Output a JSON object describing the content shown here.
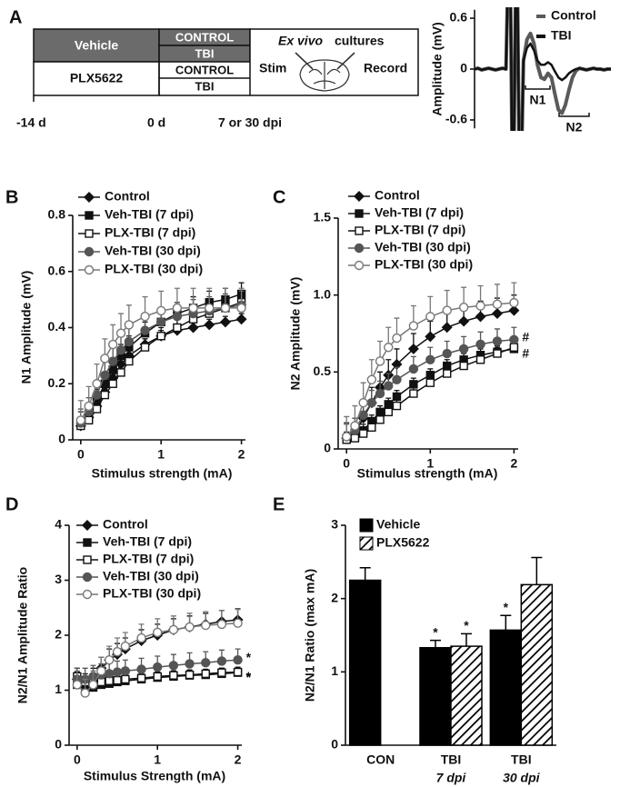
{
  "panel_labels": [
    "A",
    "B",
    "C",
    "D",
    "E"
  ],
  "panel_a": {
    "groups": [
      {
        "label": "Vehicle",
        "conditions": [
          "CONTROL",
          "TBI"
        ]
      },
      {
        "label": "PLX5622",
        "conditions": [
          "CONTROL",
          "TBI"
        ]
      }
    ],
    "culture_italic": "Ex vivo",
    "culture": "cultures",
    "stim": "Stim",
    "record": "Record",
    "timeline": [
      "-14 d",
      "0 d",
      "7 or 30 dpi"
    ]
  },
  "chart_data": [
    {
      "type": "line",
      "ylabel": "Amplitude (mV)",
      "ylim": [
        -0.7,
        0.7
      ],
      "yticks": [
        -0.6,
        0,
        0.6
      ],
      "categories": [
        null,
        null,
        null,
        null,
        null,
        null,
        null,
        null,
        null,
        null,
        null,
        null,
        null,
        null,
        null,
        null,
        null,
        null,
        null,
        null,
        null,
        null,
        null,
        null,
        null,
        null,
        null,
        null,
        null,
        null,
        null,
        null,
        null,
        null,
        null,
        null,
        null,
        null,
        null,
        null
      ],
      "series": [
        {
          "name": "Control",
          "color": "#5a5a5a",
          "width": 4,
          "values": [
            0,
            0.01,
            -0.01,
            0,
            0.01,
            0,
            -0.01,
            0,
            0.01,
            0,
            2,
            -2,
            2,
            -2,
            0.1,
            0.35,
            0.42,
            0.3,
            0.05,
            -0.1,
            -0.12,
            -0.05,
            -0.1,
            -0.3,
            -0.48,
            -0.52,
            -0.42,
            -0.25,
            -0.1,
            -0.02,
            0.01,
            0,
            -0.01,
            0,
            0.01,
            0,
            0,
            -0.01,
            0,
            0
          ]
        },
        {
          "name": "TBI",
          "color": "#111111",
          "width": 2.5,
          "values": [
            0,
            0.01,
            -0.01,
            0,
            0.01,
            0,
            -0.01,
            0,
            0.01,
            0,
            2,
            -2,
            2,
            -2,
            0.1,
            0.25,
            0.3,
            0.22,
            0.1,
            0.05,
            0.05,
            0.08,
            0.05,
            -0.03,
            -0.1,
            -0.13,
            -0.1,
            -0.05,
            -0.02,
            0,
            0.01,
            0,
            -0.01,
            0,
            0.01,
            0,
            0,
            -0.01,
            0,
            0
          ]
        }
      ],
      "annotations": [
        "N1",
        "N2"
      ]
    },
    {
      "type": "line",
      "ylabel": "N1 Amplitude (mV)",
      "xlabel": "Stimulus strength (mA)",
      "xlim": [
        -0.1,
        2.05
      ],
      "xticks": [
        0,
        1,
        2
      ],
      "ylim": [
        0,
        0.8
      ],
      "yticks": [
        0,
        0.2,
        0.4,
        0.6,
        0.8
      ],
      "x": [
        0,
        0.1,
        0.2,
        0.3,
        0.4,
        0.5,
        0.6,
        0.8,
        1.0,
        1.2,
        1.4,
        1.6,
        1.8,
        2.0
      ],
      "series": [
        {
          "name": "Control",
          "color": "#111111",
          "marker": "diamond",
          "filled": true,
          "values": [
            0.05,
            0.08,
            0.12,
            0.17,
            0.22,
            0.27,
            0.3,
            0.34,
            0.37,
            0.39,
            0.4,
            0.41,
            0.42,
            0.43
          ],
          "errors": [
            0.02,
            0.02,
            0.02,
            0.02,
            0.02,
            0.02,
            0.02,
            0.02,
            0.02,
            0.02,
            0.02,
            0.02,
            0.02,
            0.02
          ]
        },
        {
          "name": "Veh-TBI (7 dpi)",
          "color": "#111111",
          "marker": "square",
          "filled": true,
          "values": [
            0.06,
            0.08,
            0.14,
            0.2,
            0.25,
            0.3,
            0.33,
            0.38,
            0.42,
            0.45,
            0.47,
            0.49,
            0.5,
            0.52
          ],
          "errors": [
            0.04,
            0.04,
            0.04,
            0.04,
            0.04,
            0.04,
            0.04,
            0.04,
            0.04,
            0.04,
            0.04,
            0.04,
            0.04,
            0.04
          ]
        },
        {
          "name": "PLX-TBI (7 dpi)",
          "color": "#111111",
          "marker": "square",
          "filled": false,
          "values": [
            0.05,
            0.07,
            0.11,
            0.16,
            0.2,
            0.24,
            0.28,
            0.33,
            0.37,
            0.4,
            0.43,
            0.45,
            0.47,
            0.49
          ],
          "errors": [
            0.03,
            0.03,
            0.03,
            0.03,
            0.03,
            0.03,
            0.03,
            0.03,
            0.03,
            0.03,
            0.03,
            0.03,
            0.03,
            0.03
          ]
        },
        {
          "name": "Veh-TBI (30 dpi)",
          "color": "#555555",
          "marker": "circle",
          "filled": true,
          "values": [
            0.06,
            0.1,
            0.16,
            0.23,
            0.28,
            0.32,
            0.35,
            0.39,
            0.42,
            0.44,
            0.45,
            0.46,
            0.47,
            0.48
          ],
          "errors": [
            0.05,
            0.05,
            0.05,
            0.05,
            0.05,
            0.05,
            0.05,
            0.05,
            0.05,
            0.05,
            0.05,
            0.05,
            0.05,
            0.05
          ]
        },
        {
          "name": "PLX-TBI (30 dpi)",
          "color": "#777777",
          "marker": "circle",
          "filled": false,
          "values": [
            0.07,
            0.12,
            0.2,
            0.29,
            0.34,
            0.38,
            0.41,
            0.44,
            0.46,
            0.47,
            0.47,
            0.47,
            0.47,
            0.47
          ],
          "errors": [
            0.07,
            0.07,
            0.07,
            0.07,
            0.07,
            0.07,
            0.07,
            0.07,
            0.07,
            0.07,
            0.07,
            0.07,
            0.07,
            0.07
          ]
        }
      ]
    },
    {
      "type": "line",
      "ylabel": "N2 Amplitude (mV)",
      "xlabel": "Stimulus strength (mA)",
      "xlim": [
        -0.1,
        2.05
      ],
      "xticks": [
        0,
        1,
        2
      ],
      "ylim": [
        0,
        1.5
      ],
      "yticks": [
        0,
        0.5,
        {
          "value": 1,
          "label": "1.0"
        },
        1.5
      ],
      "x": [
        0,
        0.1,
        0.2,
        0.3,
        0.4,
        0.5,
        0.6,
        0.8,
        1.0,
        1.2,
        1.4,
        1.6,
        1.8,
        2.0
      ],
      "series": [
        {
          "name": "Control",
          "color": "#111111",
          "marker": "diamond",
          "filled": true,
          "values": [
            0.07,
            0.1,
            0.2,
            0.3,
            0.4,
            0.48,
            0.55,
            0.65,
            0.73,
            0.79,
            0.83,
            0.86,
            0.88,
            0.9
          ],
          "errors": [
            0.1,
            0.1,
            0.1,
            0.1,
            0.1,
            0.1,
            0.1,
            0.1,
            0.1,
            0.1,
            0.1,
            0.1,
            0.1,
            0.1
          ]
        },
        {
          "name": "Veh-TBI (7 dpi)",
          "color": "#111111",
          "marker": "square",
          "filled": true,
          "values": [
            0.07,
            0.08,
            0.12,
            0.18,
            0.24,
            0.29,
            0.34,
            0.42,
            0.48,
            0.54,
            0.58,
            0.61,
            0.63,
            0.65
          ],
          "errors": [
            0.04,
            0.04,
            0.04,
            0.04,
            0.04,
            0.04,
            0.04,
            0.04,
            0.04,
            0.04,
            0.04,
            0.04,
            0.04,
            0.04
          ]
        },
        {
          "name": "PLX-TBI (7 dpi)",
          "color": "#111111",
          "marker": "square",
          "filled": false,
          "values": [
            0.06,
            0.07,
            0.1,
            0.14,
            0.19,
            0.24,
            0.28,
            0.36,
            0.43,
            0.49,
            0.54,
            0.58,
            0.62,
            0.66
          ],
          "errors": [
            0.04,
            0.04,
            0.04,
            0.04,
            0.04,
            0.04,
            0.04,
            0.04,
            0.04,
            0.04,
            0.04,
            0.04,
            0.04,
            0.04
          ]
        },
        {
          "name": "Veh-TBI (30 dpi)",
          "color": "#555555",
          "marker": "circle",
          "filled": true,
          "values": [
            0.08,
            0.12,
            0.22,
            0.3,
            0.36,
            0.41,
            0.45,
            0.52,
            0.58,
            0.62,
            0.65,
            0.68,
            0.7,
            0.71
          ],
          "errors": [
            0.08,
            0.08,
            0.08,
            0.08,
            0.08,
            0.08,
            0.08,
            0.08,
            0.08,
            0.08,
            0.08,
            0.08,
            0.08,
            0.08
          ]
        },
        {
          "name": "PLX-TBI (30 dpi)",
          "color": "#777777",
          "marker": "circle",
          "filled": false,
          "values": [
            0.08,
            0.15,
            0.3,
            0.45,
            0.57,
            0.66,
            0.72,
            0.8,
            0.86,
            0.9,
            0.92,
            0.93,
            0.94,
            0.95
          ],
          "errors": [
            0.13,
            0.13,
            0.13,
            0.13,
            0.13,
            0.13,
            0.13,
            0.13,
            0.13,
            0.13,
            0.13,
            0.13,
            0.13,
            0.13
          ]
        }
      ],
      "annotations": [
        "#",
        "#"
      ]
    },
    {
      "type": "line",
      "ylabel": "N2/N1 Amplitude Ratio",
      "xlabel": "Stimulus Strength (mA)",
      "xlim": [
        -0.1,
        2.05
      ],
      "xticks": [
        0,
        1,
        2
      ],
      "ylim": [
        0,
        4
      ],
      "yticks": [
        0,
        1,
        2,
        3,
        4
      ],
      "x": [
        0,
        0.1,
        0.2,
        0.3,
        0.4,
        0.5,
        0.6,
        0.8,
        1.0,
        1.2,
        1.4,
        1.6,
        1.8,
        2.0
      ],
      "series": [
        {
          "name": "Control",
          "color": "#111111",
          "marker": "diamond",
          "filled": true,
          "values": [
            1.2,
            1.1,
            1.2,
            1.4,
            1.55,
            1.65,
            1.75,
            1.9,
            2.0,
            2.1,
            2.15,
            2.2,
            2.25,
            2.28
          ],
          "errors": [
            0.2,
            0.2,
            0.2,
            0.2,
            0.2,
            0.2,
            0.2,
            0.2,
            0.2,
            0.2,
            0.2,
            0.2,
            0.2,
            0.2
          ]
        },
        {
          "name": "Veh-TBI (7 dpi)",
          "color": "#111111",
          "marker": "square",
          "filled": true,
          "values": [
            1.1,
            1.05,
            1.05,
            1.1,
            1.12,
            1.15,
            1.17,
            1.2,
            1.23,
            1.25,
            1.27,
            1.28,
            1.3,
            1.32
          ],
          "errors": [
            0.1,
            0.1,
            0.1,
            0.1,
            0.1,
            0.1,
            0.1,
            0.1,
            0.1,
            0.1,
            0.1,
            0.1,
            0.1,
            0.1
          ]
        },
        {
          "name": "PLX-TBI (7 dpi)",
          "color": "#111111",
          "marker": "square",
          "filled": false,
          "values": [
            1.25,
            1.15,
            1.15,
            1.15,
            1.17,
            1.18,
            1.2,
            1.22,
            1.25,
            1.27,
            1.28,
            1.3,
            1.32,
            1.33
          ],
          "errors": [
            0.08,
            0.08,
            0.08,
            0.08,
            0.08,
            0.08,
            0.08,
            0.08,
            0.08,
            0.08,
            0.08,
            0.08,
            0.08,
            0.08
          ]
        },
        {
          "name": "Veh-TBI (30 dpi)",
          "color": "#555555",
          "marker": "circle",
          "filled": true,
          "values": [
            1.2,
            1.2,
            1.25,
            1.28,
            1.3,
            1.33,
            1.35,
            1.38,
            1.42,
            1.45,
            1.48,
            1.5,
            1.53,
            1.55
          ],
          "errors": [
            0.2,
            0.2,
            0.2,
            0.2,
            0.2,
            0.2,
            0.2,
            0.2,
            0.2,
            0.2,
            0.2,
            0.2,
            0.2,
            0.2
          ]
        },
        {
          "name": "PLX-TBI (30 dpi)",
          "color": "#777777",
          "marker": "circle",
          "filled": false,
          "values": [
            1.1,
            0.95,
            1.1,
            1.35,
            1.55,
            1.7,
            1.8,
            1.95,
            2.05,
            2.1,
            2.15,
            2.18,
            2.2,
            2.22
          ],
          "errors": [
            0.25,
            0.25,
            0.25,
            0.25,
            0.25,
            0.25,
            0.25,
            0.25,
            0.25,
            0.25,
            0.25,
            0.25,
            0.25,
            0.25
          ]
        }
      ],
      "annotations": [
        "*",
        "*",
        "*"
      ]
    },
    {
      "type": "bar",
      "ylabel": "N2/N1 Ratio (max mA)",
      "ylim": [
        0,
        3
      ],
      "yticks": [
        0,
        1,
        2,
        3
      ],
      "categories": [
        "CON",
        "TBI",
        "TBI"
      ],
      "category_sublabels": [
        null,
        "7 dpi",
        "30 dpi"
      ],
      "series": [
        {
          "name": "Vehicle",
          "color": "#000000",
          "pattern": "solid",
          "values": [
            2.25,
            1.33,
            1.57
          ],
          "errors": [
            0.17,
            0.1,
            0.2
          ],
          "labels": [
            null,
            "*",
            "*"
          ]
        },
        {
          "name": "PLX5622",
          "color": "#000000",
          "pattern": "hatch",
          "values": [
            null,
            1.35,
            2.19
          ],
          "errors": [
            null,
            0.17,
            0.37
          ],
          "labels": [
            null,
            "*",
            null
          ]
        }
      ]
    }
  ]
}
